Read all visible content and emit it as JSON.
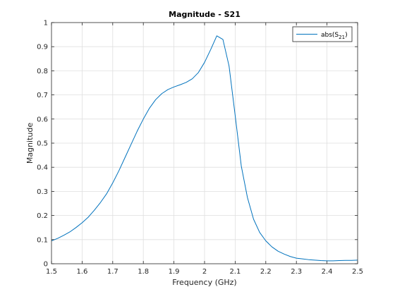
{
  "chart_data": {
    "type": "line",
    "title": "Magnitude - S21",
    "xlabel": "Frequency (GHz)",
    "ylabel": "Magnitude",
    "xlim": [
      1.5,
      2.5
    ],
    "ylim": [
      0,
      1
    ],
    "x_ticks": [
      "1.5",
      "1.6",
      "1.7",
      "1.8",
      "1.9",
      "2",
      "2.1",
      "2.2",
      "2.3",
      "2.4",
      "2.5"
    ],
    "y_ticks": [
      "0",
      "0.1",
      "0.2",
      "0.3",
      "0.4",
      "0.5",
      "0.6",
      "0.7",
      "0.8",
      "0.9",
      "1"
    ],
    "grid": true,
    "legend_position": "top-right",
    "series": [
      {
        "name": "abs(S21)",
        "name_base": "abs(S",
        "name_sub": "21",
        "name_end": ")",
        "color": "#0072bd",
        "x": [
          1.5,
          1.52,
          1.54,
          1.56,
          1.58,
          1.6,
          1.62,
          1.64,
          1.66,
          1.68,
          1.7,
          1.72,
          1.74,
          1.76,
          1.78,
          1.8,
          1.82,
          1.84,
          1.86,
          1.88,
          1.9,
          1.92,
          1.94,
          1.96,
          1.98,
          2.0,
          2.02,
          2.04,
          2.06,
          2.08,
          2.1,
          2.12,
          2.14,
          2.16,
          2.18,
          2.2,
          2.22,
          2.24,
          2.26,
          2.28,
          2.3,
          2.32,
          2.34,
          2.36,
          2.38,
          2.4,
          2.42,
          2.44,
          2.46,
          2.48,
          2.5
        ],
        "y": [
          0.095,
          0.105,
          0.118,
          0.132,
          0.15,
          0.17,
          0.193,
          0.222,
          0.254,
          0.29,
          0.335,
          0.385,
          0.44,
          0.495,
          0.55,
          0.6,
          0.645,
          0.68,
          0.705,
          0.722,
          0.733,
          0.742,
          0.752,
          0.767,
          0.793,
          0.835,
          0.888,
          0.945,
          0.93,
          0.82,
          0.615,
          0.405,
          0.275,
          0.185,
          0.13,
          0.095,
          0.07,
          0.052,
          0.04,
          0.03,
          0.023,
          0.02,
          0.017,
          0.015,
          0.013,
          0.012,
          0.012,
          0.013,
          0.014,
          0.014,
          0.015
        ]
      }
    ]
  }
}
